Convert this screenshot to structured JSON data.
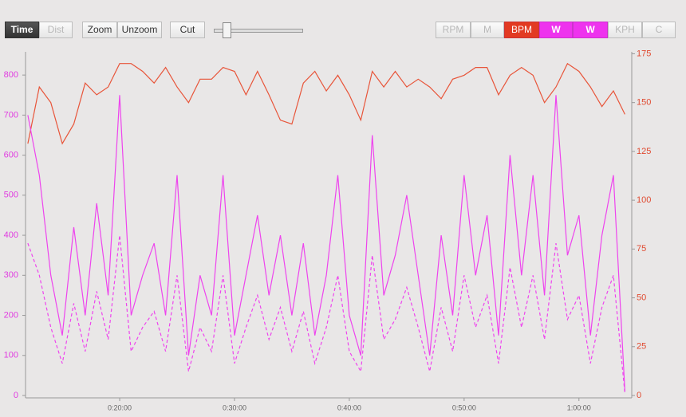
{
  "toolbar": {
    "left": [
      "Time",
      "Dist"
    ],
    "zoom": [
      "Zoom",
      "Unzoom"
    ],
    "cut": "Cut",
    "right": [
      "RPM",
      "M",
      "KPH",
      "C"
    ]
  },
  "chart_data": {
    "type": "line",
    "x": [
      720,
      780,
      840,
      900,
      960,
      1020,
      1080,
      1140,
      1200,
      1260,
      1320,
      1380,
      1440,
      1500,
      1560,
      1620,
      1680,
      1740,
      1800,
      1860,
      1920,
      1980,
      2040,
      2100,
      2160,
      2220,
      2280,
      2340,
      2400,
      2460,
      2520,
      2580,
      2640,
      2700,
      2760,
      2820,
      2880,
      2940,
      3000,
      3060,
      3120,
      3180,
      3240,
      3300,
      3360,
      3420,
      3480,
      3540,
      3600,
      3660,
      3720,
      3780,
      3840
    ],
    "xlim": [
      708,
      3876
    ],
    "xticks": [
      {
        "value": 1200,
        "label": "0:20:00"
      },
      {
        "value": 1800,
        "label": "0:30:00"
      },
      {
        "value": 2400,
        "label": "0:40:00"
      },
      {
        "value": 3000,
        "label": "0:50:00"
      },
      {
        "value": 3600,
        "label": "1:00:00"
      }
    ],
    "ylim": [
      0,
      858
    ],
    "yticks": [
      0,
      100,
      200,
      300,
      400,
      500,
      600,
      700,
      800
    ],
    "y2lim": [
      0,
      176
    ],
    "y2ticks": [
      0,
      25,
      50,
      75,
      100,
      125,
      150,
      175
    ],
    "series": [
      {
        "name": "BPM",
        "color": "#e8553a",
        "axis": "y2",
        "style": "solid",
        "values": [
          129,
          158,
          150,
          129,
          139,
          160,
          154,
          158,
          170,
          170,
          166,
          160,
          168,
          158,
          150,
          162,
          162,
          168,
          166,
          154,
          166,
          154,
          141,
          139,
          160,
          166,
          156,
          164,
          154,
          141,
          166,
          158,
          166,
          158,
          162,
          158,
          152,
          162,
          164,
          168,
          168,
          154,
          164,
          168,
          164,
          150,
          158,
          170,
          166,
          158,
          148,
          156,
          144
        ]
      },
      {
        "name": "W",
        "color": "#ee44ee",
        "axis": "y",
        "style": "solid",
        "values": [
          700,
          550,
          300,
          150,
          420,
          200,
          480,
          250,
          750,
          200,
          300,
          380,
          200,
          550,
          100,
          300,
          200,
          550,
          150,
          300,
          450,
          250,
          400,
          200,
          380,
          150,
          300,
          550,
          200,
          100,
          650,
          250,
          350,
          500,
          300,
          100,
          400,
          200,
          550,
          300,
          450,
          150,
          600,
          300,
          550,
          250,
          750,
          350,
          450,
          150,
          400,
          550,
          10
        ]
      },
      {
        "name": "W",
        "color": "#ee44ee",
        "axis": "y",
        "style": "dashed",
        "values": [
          380,
          300,
          170,
          80,
          230,
          110,
          260,
          140,
          400,
          110,
          170,
          210,
          110,
          300,
          60,
          170,
          110,
          300,
          80,
          170,
          250,
          140,
          220,
          110,
          210,
          80,
          170,
          300,
          110,
          60,
          350,
          140,
          190,
          270,
          170,
          60,
          220,
          110,
          300,
          170,
          250,
          80,
          320,
          170,
          300,
          140,
          380,
          190,
          250,
          80,
          220,
          300,
          5
        ]
      }
    ]
  }
}
